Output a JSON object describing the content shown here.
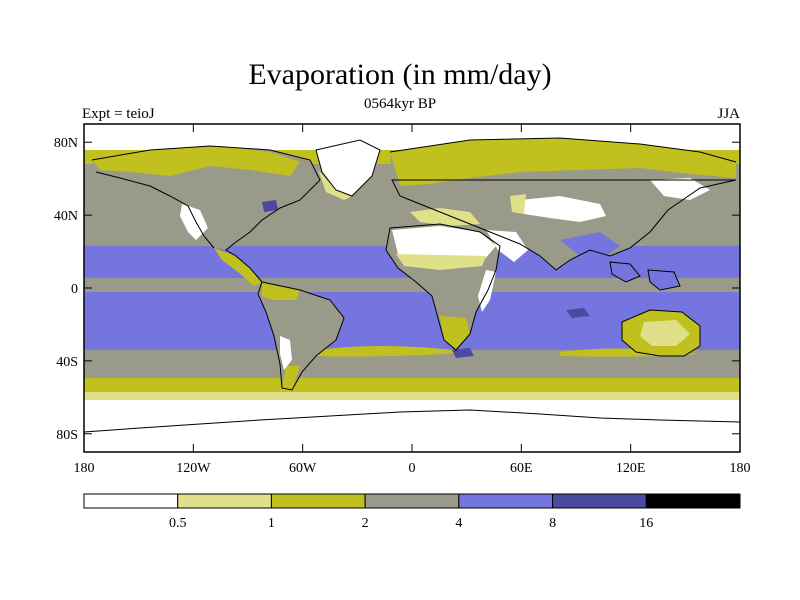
{
  "title": "Evaporation (in mm/day)",
  "subtitle": "0564kyr BP",
  "left_label": "Expt = teioJ",
  "right_label": "JJA",
  "map": {
    "projection": "cylindrical-equidistant",
    "lon_range": [
      -180,
      180
    ],
    "lat_range": [
      -90,
      90
    ],
    "x_ticks": [
      "180",
      "120W",
      "60W",
      "0",
      "60E",
      "120E",
      "180"
    ],
    "y_ticks": [
      "80N",
      "40N",
      "0",
      "40S",
      "80S"
    ]
  },
  "colorbar": {
    "levels": [
      "0.5",
      "1",
      "2",
      "4",
      "8",
      "16"
    ],
    "colors": [
      "#ffffff",
      "#e0e08a",
      "#c0c01e",
      "#9a9a8a",
      "#7575e0",
      "#4a4aa0",
      "#000000"
    ]
  }
}
